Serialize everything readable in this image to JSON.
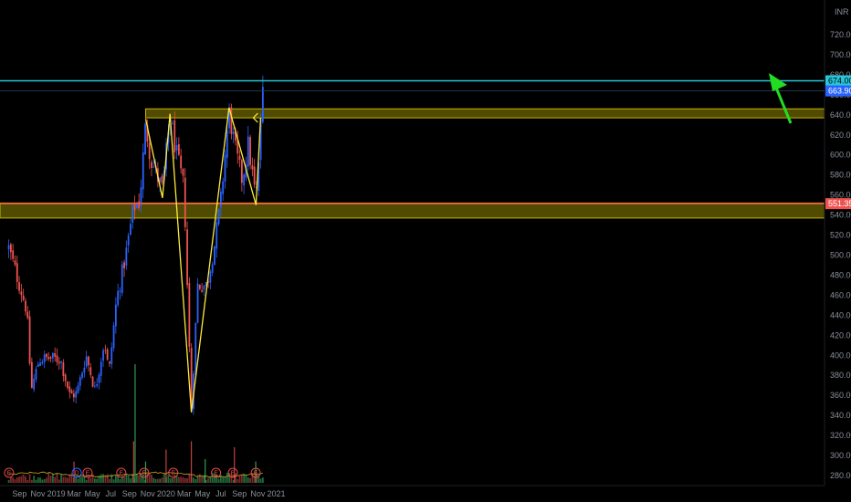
{
  "chart_data": {
    "type": "candlestick",
    "currency": "INR",
    "ylim": [
      270,
      760
    ],
    "y_ticks": [
      280,
      300,
      320,
      340,
      360,
      380,
      400,
      420,
      440,
      460,
      480,
      500,
      520,
      540,
      560,
      580,
      600,
      620,
      640,
      660,
      680,
      700,
      720
    ],
    "y_tick_labels": [
      "280.00",
      "300.00",
      "320.00",
      "340.00",
      "360.00",
      "380.00",
      "400.00",
      "420.00",
      "440.00",
      "460.00",
      "480.00",
      "500.00",
      "520.00",
      "540.00",
      "560.00",
      "580.00",
      "600.00",
      "620.00",
      "640.00",
      "660.00",
      "680.00",
      "700.00",
      "720.00"
    ],
    "x_labels": [
      "Sep",
      "Nov",
      "2019",
      "Mar",
      "May",
      "Jul",
      "Sep",
      "Nov",
      "2020",
      "Mar",
      "May",
      "Jul",
      "Sep",
      "Nov",
      "2021"
    ],
    "colors": {
      "up": "#2962ff",
      "down": "#ef5350",
      "cyan_line": "#26c6da",
      "red_line": "#ef5350",
      "zone": "#6b6400",
      "zone_border": "#c9b400",
      "pattern": "#ffeb3b",
      "arrow": "#22dd22"
    },
    "price_tags": [
      {
        "label": "674.00",
        "color": "#26c6da",
        "value": 674
      },
      {
        "label": "663.90",
        "color": "#2962ff",
        "value": 663.9
      },
      {
        "label": "551.35",
        "color": "#ef5350",
        "value": 551.35
      }
    ],
    "horizontal_lines": [
      {
        "name": "resistance",
        "value": 674,
        "color": "#26c6da"
      },
      {
        "name": "support",
        "value": 551.35,
        "color": "#ef5350"
      }
    ],
    "zones": [
      {
        "name": "top-zone",
        "from": 637,
        "to": 646,
        "start_x_label": "Nov"
      },
      {
        "name": "mid-zone",
        "from": 537,
        "to": 552
      }
    ],
    "pattern_points": [
      {
        "date": "2019-10-25",
        "price": 636
      },
      {
        "date": "2019-12-20",
        "price": 557
      },
      {
        "date": "2020-01-14",
        "price": 641
      },
      {
        "date": "2020-03-25",
        "price": 343
      },
      {
        "date": "2020-07-28",
        "price": 647
      },
      {
        "date": "2020-10-26",
        "price": 550
      },
      {
        "date": "2020-11-10",
        "price": 637
      }
    ],
    "key_points": [
      {
        "date": "2018-07-27",
        "price": 507
      },
      {
        "date": "2018-09-25",
        "price": 445
      },
      {
        "date": "2018-10-10",
        "price": 365
      },
      {
        "date": "2018-11-05",
        "price": 396
      },
      {
        "date": "2018-12-10",
        "price": 397
      },
      {
        "date": "2019-01-15",
        "price": 396
      },
      {
        "date": "2019-02-15",
        "price": 360
      },
      {
        "date": "2019-03-10",
        "price": 362
      },
      {
        "date": "2019-04-10",
        "price": 400
      },
      {
        "date": "2019-05-10",
        "price": 365
      },
      {
        "date": "2019-06-10",
        "price": 415
      },
      {
        "date": "2019-06-25",
        "price": 382
      },
      {
        "date": "2019-07-20",
        "price": 455
      },
      {
        "date": "2019-08-20",
        "price": 500
      },
      {
        "date": "2019-09-15",
        "price": 548
      },
      {
        "date": "2019-10-05",
        "price": 553
      },
      {
        "date": "2019-10-25",
        "price": 630
      },
      {
        "date": "2019-11-12",
        "price": 595
      },
      {
        "date": "2019-12-20",
        "price": 565
      },
      {
        "date": "2020-01-14",
        "price": 638
      },
      {
        "date": "2020-02-05",
        "price": 600
      },
      {
        "date": "2020-03-01",
        "price": 566
      },
      {
        "date": "2020-03-25",
        "price": 345
      },
      {
        "date": "2020-04-15",
        "price": 470
      },
      {
        "date": "2020-05-15",
        "price": 470
      },
      {
        "date": "2020-06-10",
        "price": 510
      },
      {
        "date": "2020-07-01",
        "price": 555
      },
      {
        "date": "2020-07-28",
        "price": 643
      },
      {
        "date": "2020-08-20",
        "price": 602
      },
      {
        "date": "2020-09-10",
        "price": 575
      },
      {
        "date": "2020-09-30",
        "price": 610
      },
      {
        "date": "2020-10-26",
        "price": 555
      },
      {
        "date": "2020-11-05",
        "price": 600
      },
      {
        "date": "2020-11-18",
        "price": 668
      }
    ],
    "volume_spikes": [
      {
        "date": "2019-09-20",
        "relative": 1.0,
        "up": true
      },
      {
        "date": "2019-09-15",
        "relative": 0.35,
        "up": false
      },
      {
        "date": "2020-01-01",
        "relative": 0.28,
        "up": false
      },
      {
        "date": "2020-03-25",
        "relative": 0.35,
        "up": false
      },
      {
        "date": "2020-08-15",
        "relative": 0.3,
        "up": false
      },
      {
        "date": "2020-05-10",
        "relative": 0.2,
        "up": true
      },
      {
        "date": "2019-10-25",
        "relative": 0.18,
        "up": true
      },
      {
        "date": "2020-10-25",
        "relative": 0.18,
        "up": true
      },
      {
        "date": "2019-03-01",
        "relative": 0.18,
        "up": false
      }
    ],
    "event_markers": [
      {
        "date": "2018-07-28",
        "label": "E"
      },
      {
        "date": "2019-03-10",
        "label": "D"
      },
      {
        "date": "2019-04-15",
        "label": "E"
      },
      {
        "date": "2019-08-05",
        "label": "E"
      },
      {
        "date": "2019-10-20",
        "label": "E"
      },
      {
        "date": "2020-01-25",
        "label": "E"
      },
      {
        "date": "2020-06-15",
        "label": "E"
      },
      {
        "date": "2020-08-10",
        "label": "E"
      },
      {
        "date": "2020-10-25",
        "label": "E"
      }
    ]
  }
}
